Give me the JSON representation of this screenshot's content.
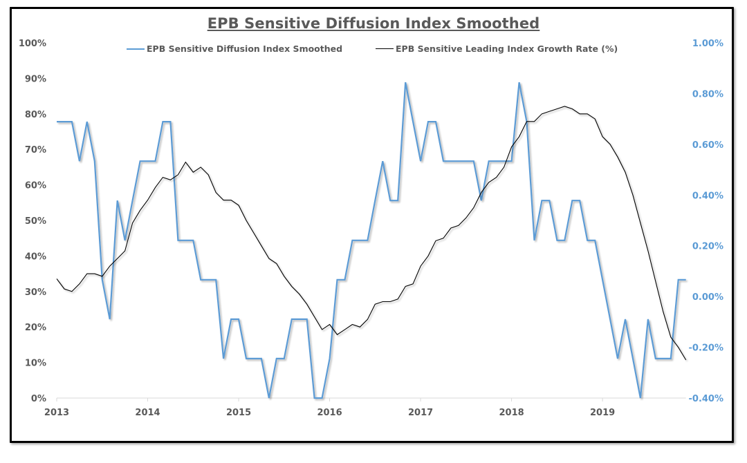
{
  "chart_data": {
    "type": "line",
    "title": "EPB Sensitive Diffusion Index Smoothed",
    "xlabel": "",
    "ylabel": "",
    "x_start": "2013-01",
    "x_frequency": "monthly",
    "x_tick_labels": [
      "2013",
      "2014",
      "2015",
      "2016",
      "2017",
      "2018",
      "2019"
    ],
    "left_axis": {
      "range": [
        0,
        100
      ],
      "unit": "%",
      "tick_labels": [
        "0%",
        "10%",
        "20%",
        "30%",
        "40%",
        "50%",
        "60%",
        "70%",
        "80%",
        "90%",
        "100%"
      ]
    },
    "right_axis": {
      "range": [
        -0.4,
        1.0
      ],
      "unit": "%",
      "tick_labels": [
        "-0.40%",
        "-0.20%",
        "0.00%",
        "0.20%",
        "0.40%",
        "0.60%",
        "0.80%",
        "1.00%"
      ]
    },
    "grid": false,
    "legend_position": "top",
    "series": [
      {
        "name": "EPB Sensitive Diffusion Index Smoothed",
        "axis": "left",
        "color": "#5b9bd5",
        "values": [
          77.8,
          77.8,
          77.8,
          66.7,
          77.8,
          66.7,
          33.3,
          22.2,
          55.6,
          44.4,
          55.6,
          66.7,
          66.7,
          66.7,
          77.8,
          77.8,
          44.4,
          44.4,
          44.4,
          33.3,
          33.3,
          33.3,
          11.1,
          22.2,
          22.2,
          11.1,
          11.1,
          11.1,
          0.0,
          11.1,
          11.1,
          22.2,
          22.2,
          22.2,
          0.0,
          0.0,
          11.1,
          33.3,
          33.3,
          44.4,
          44.4,
          44.4,
          55.6,
          66.7,
          55.6,
          55.6,
          88.9,
          77.8,
          66.7,
          77.8,
          77.8,
          66.7,
          66.7,
          66.7,
          66.7,
          66.7,
          55.6,
          66.7,
          66.7,
          66.7,
          66.7,
          88.9,
          77.8,
          44.4,
          55.6,
          55.6,
          44.4,
          44.4,
          55.6,
          55.6,
          44.4,
          44.4,
          33.3,
          22.2,
          11.1,
          22.2,
          11.1,
          0.0,
          22.2,
          11.1,
          11.1,
          11.1,
          33.3,
          33.3
        ]
      },
      {
        "name": "EPB Sensitive Leading Index Growth Rate (%)",
        "axis": "right",
        "color": "#000000",
        "values": [
          0.07,
          0.03,
          0.02,
          0.05,
          0.09,
          0.09,
          0.08,
          0.12,
          0.15,
          0.18,
          0.29,
          0.34,
          0.38,
          0.43,
          0.47,
          0.46,
          0.48,
          0.53,
          0.49,
          0.51,
          0.48,
          0.41,
          0.38,
          0.38,
          0.36,
          0.3,
          0.25,
          0.2,
          0.15,
          0.13,
          0.08,
          0.04,
          0.01,
          -0.03,
          -0.08,
          -0.13,
          -0.11,
          -0.15,
          -0.13,
          -0.11,
          -0.12,
          -0.09,
          -0.03,
          -0.02,
          -0.02,
          -0.01,
          0.04,
          0.05,
          0.12,
          0.16,
          0.22,
          0.23,
          0.27,
          0.28,
          0.31,
          0.35,
          0.41,
          0.45,
          0.47,
          0.51,
          0.59,
          0.63,
          0.69,
          0.69,
          0.72,
          0.73,
          0.74,
          0.75,
          0.74,
          0.72,
          0.72,
          0.7,
          0.63,
          0.6,
          0.55,
          0.49,
          0.4,
          0.29,
          0.18,
          0.06,
          -0.06,
          -0.16,
          -0.2,
          -0.25
        ]
      }
    ]
  }
}
